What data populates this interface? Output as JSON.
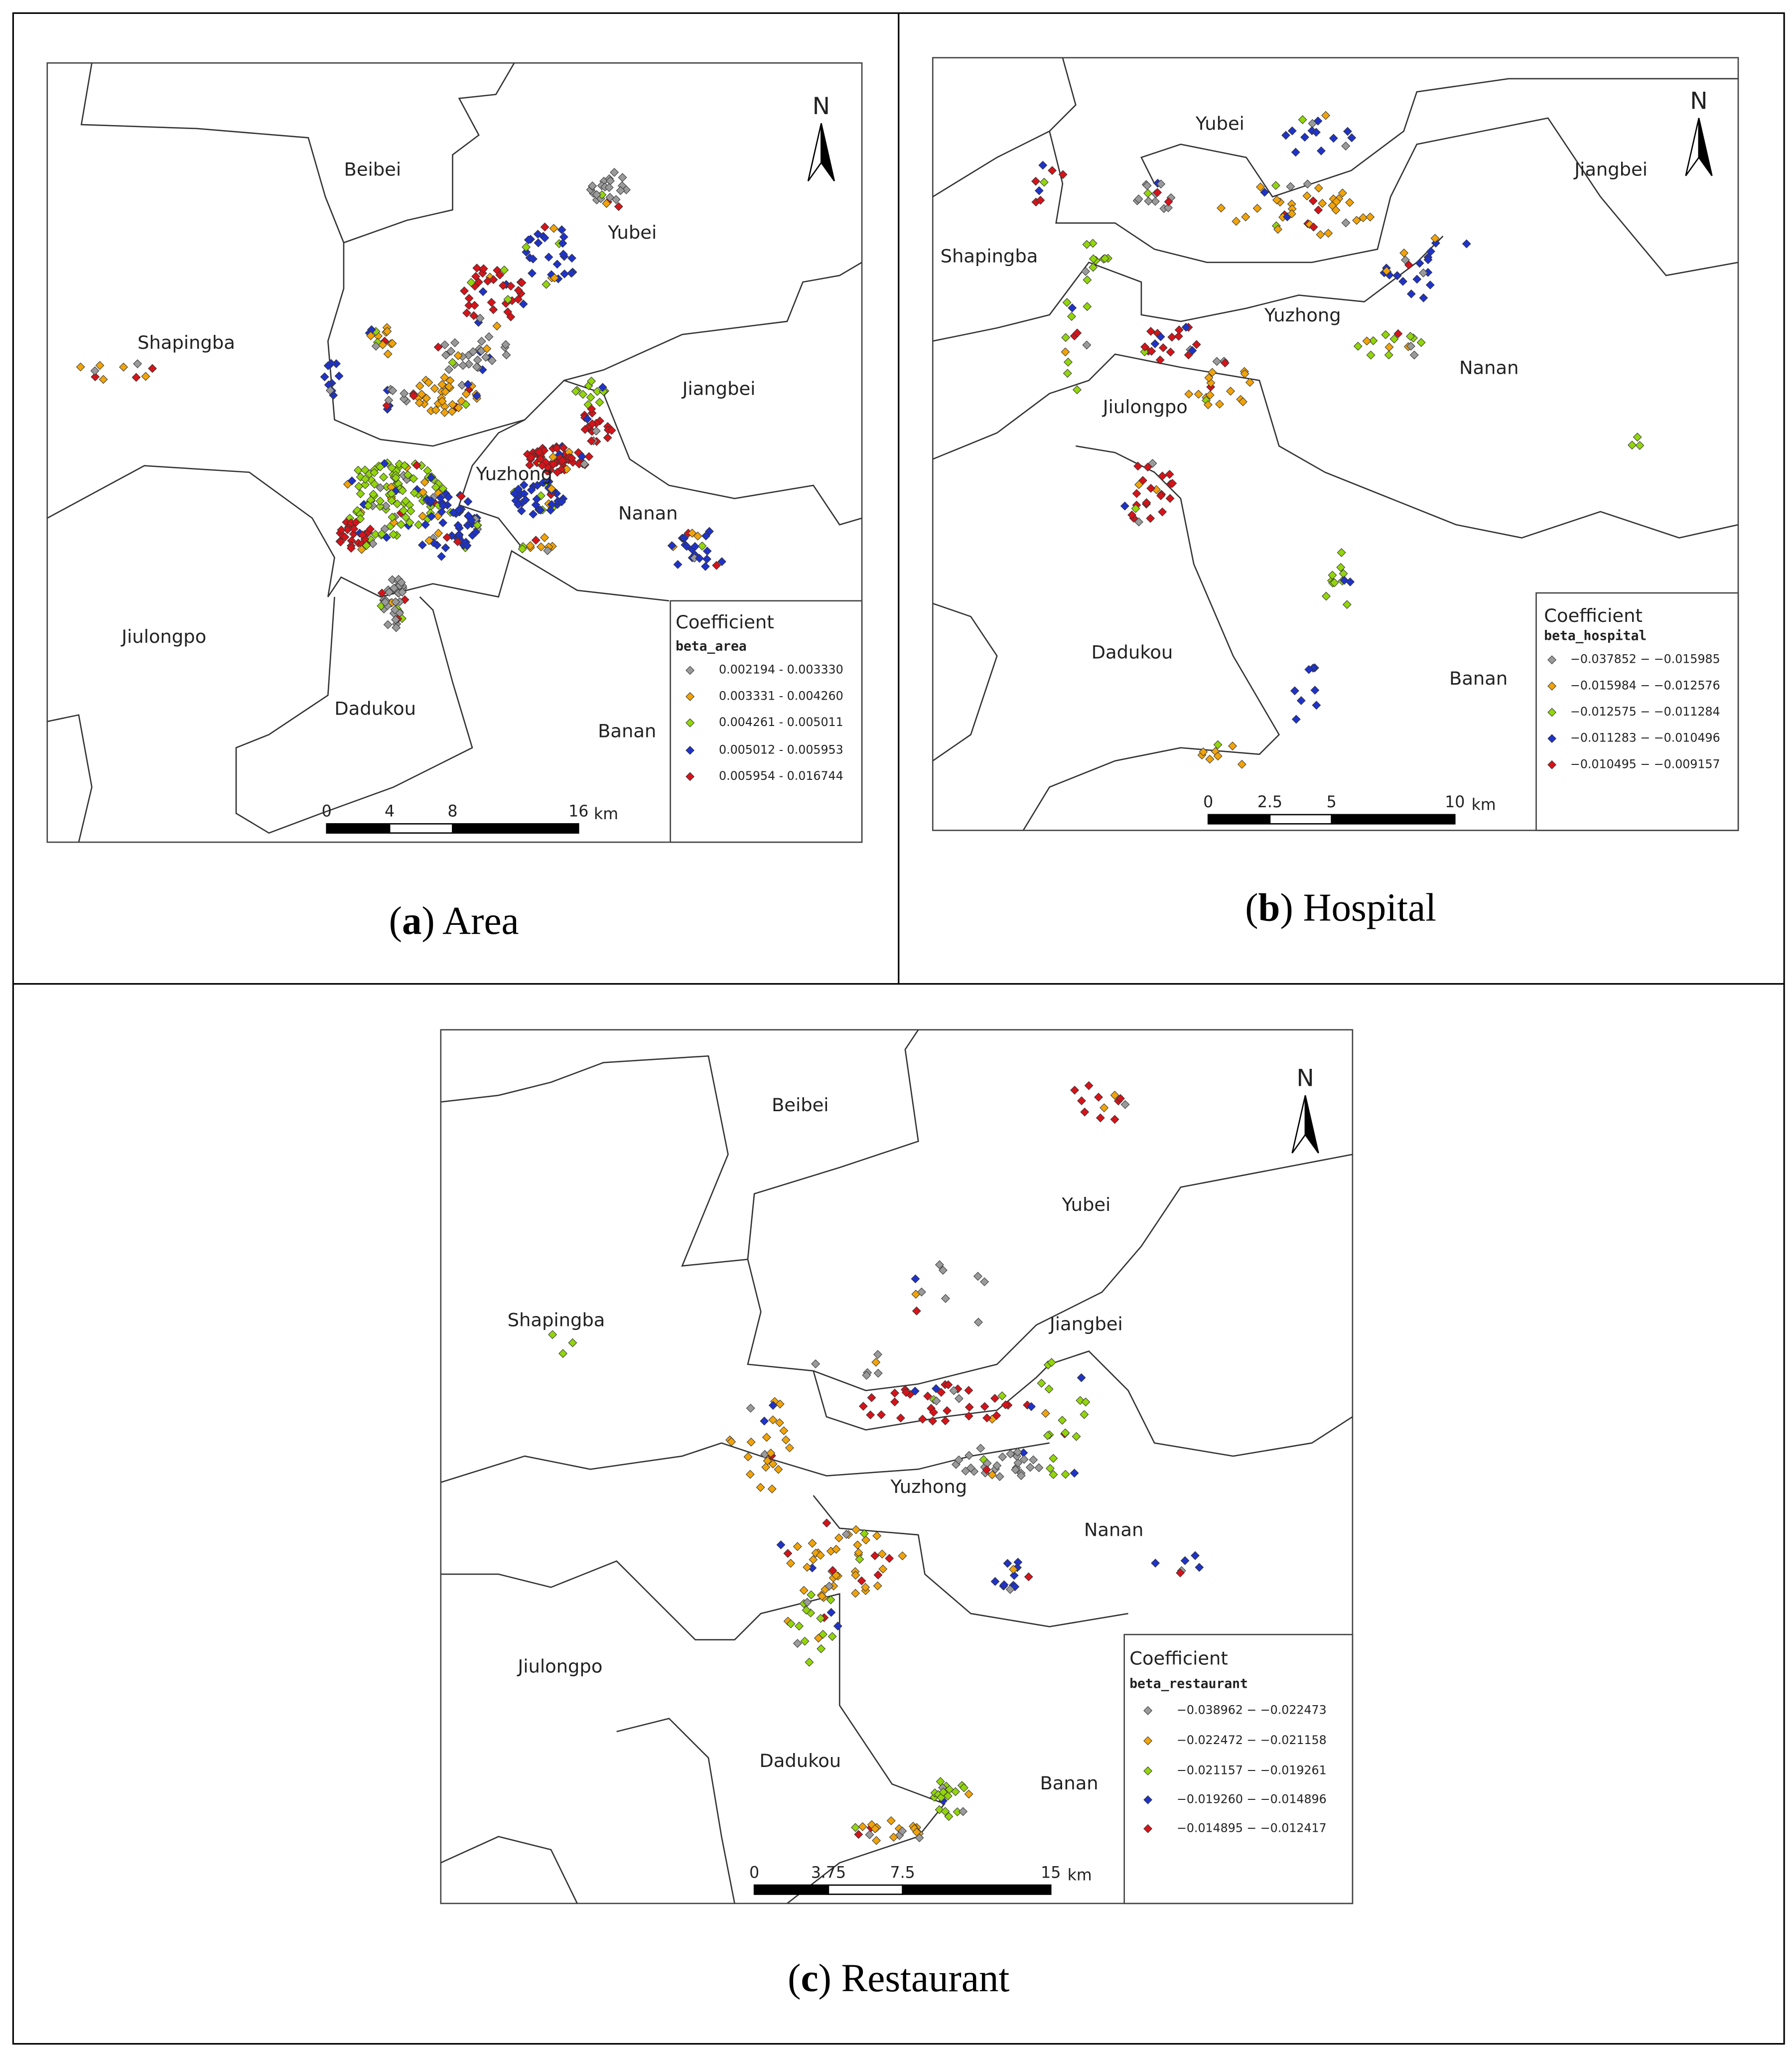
{
  "panels": [
    {
      "caption": [
        "(",
        "a",
        ") Area"
      ],
      "districts": [
        "Beibei",
        "Yubei",
        "Shapingba",
        "Jiangbei",
        "Yuzhong",
        "Nanan",
        "Jiulongpo",
        "Dadukou",
        "Banan"
      ],
      "north": "N",
      "scale": [
        0,
        4,
        8,
        16
      ],
      "scale_unit": "km",
      "legend": {
        "title": "Coefficient",
        "field": "beta_area",
        "classes": [
          {
            "label": "0.002194 - 0.003330",
            "color": "#9a9a9a"
          },
          {
            "label": "0.003331 - 0.004260",
            "color": "#f0a30a"
          },
          {
            "label": "0.004261 - 0.005011",
            "color": "#92d50c"
          },
          {
            "label": "0.005012 - 0.005953",
            "color": "#1f33c8"
          },
          {
            "label": "0.005954 - 0.016744",
            "color": "#d4141a"
          }
        ]
      }
    },
    {
      "caption": [
        "(",
        "b",
        ") Hospital"
      ],
      "districts": [
        "Yubei",
        "Jiangbei",
        "Shapingba",
        "Yuzhong",
        "Nanan",
        "Jiulongpo",
        "Dadukou",
        "Banan"
      ],
      "north": "N",
      "scale": [
        0,
        2.5,
        5,
        10
      ],
      "scale_unit": "km",
      "legend": {
        "title": "Coefficient",
        "field": "beta_hospital",
        "classes": [
          {
            "label": "−0.037852 − −0.015985",
            "color": "#9a9a9a"
          },
          {
            "label": "−0.015984 − −0.012576",
            "color": "#f0a30a"
          },
          {
            "label": "−0.012575 − −0.011284",
            "color": "#92d50c"
          },
          {
            "label": "−0.011283 − −0.010496",
            "color": "#1f33c8"
          },
          {
            "label": "−0.010495 − −0.009157",
            "color": "#d4141a"
          }
        ]
      }
    },
    {
      "caption": [
        "(",
        "c",
        ") Restaurant"
      ],
      "districts": [
        "Beibei",
        "Yubei",
        "Shapingba",
        "Jiangbei",
        "Yuzhong",
        "Nanan",
        "Jiulongpo",
        "Dadukou",
        "Banan"
      ],
      "north": "N",
      "scale": [
        0,
        3.75,
        7.5,
        15
      ],
      "scale_unit": "km",
      "legend": {
        "title": "Coefficient",
        "field": "beta_restaurant",
        "classes": [
          {
            "label": "−0.038962 − −0.022473",
            "color": "#9a9a9a"
          },
          {
            "label": "−0.022472 − −0.021158",
            "color": "#f0a30a"
          },
          {
            "label": "−0.021157 − −0.019261",
            "color": "#92d50c"
          },
          {
            "label": "−0.019260 − −0.014896",
            "color": "#1f33c8"
          },
          {
            "label": "−0.014895 − −0.012417",
            "color": "#d4141a"
          }
        ]
      }
    }
  ]
}
